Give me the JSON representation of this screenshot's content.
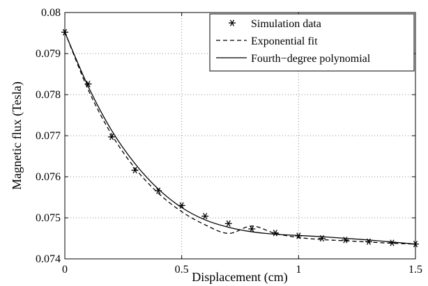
{
  "chart_data": {
    "type": "line",
    "title": "",
    "xlabel": "Displacement (cm)",
    "ylabel": "Magnetic flux (Tesla)",
    "xlim": [
      0,
      1.5
    ],
    "ylim": [
      0.074,
      0.08
    ],
    "x_ticks": [
      0,
      0.5,
      1,
      1.5
    ],
    "x_tick_labels": [
      "0",
      "0.5",
      "1",
      "1.5"
    ],
    "y_ticks": [
      0.074,
      0.075,
      0.076,
      0.077,
      0.078,
      0.079,
      0.08
    ],
    "y_tick_labels": [
      "0.074",
      "0.075",
      "0.076",
      "0.077",
      "0.078",
      "0.079",
      "0.08"
    ],
    "grid": true,
    "legend_position": "top-right",
    "series": [
      {
        "name": "Simulation data",
        "style": "markers",
        "marker": "*",
        "x": [
          0,
          0.1,
          0.2,
          0.3,
          0.4,
          0.5,
          0.6,
          0.7,
          0.8,
          0.9,
          1.0,
          1.1,
          1.2,
          1.3,
          1.4,
          1.5
        ],
        "y": [
          0.07952,
          0.07826,
          0.07697,
          0.07616,
          0.07566,
          0.0753,
          0.07504,
          0.07486,
          0.07473,
          0.07463,
          0.07456,
          0.0745,
          0.07446,
          0.07442,
          0.07439,
          0.07436
        ]
      },
      {
        "name": "Exponential fit",
        "style": "dashed",
        "x": [
          0,
          0.1,
          0.2,
          0.3,
          0.4,
          0.5,
          0.6,
          0.7,
          0.8,
          0.9,
          1.0,
          1.1,
          1.2,
          1.3,
          1.4,
          1.5
        ],
        "y": [
          0.07953,
          0.07812,
          0.07703,
          0.07621,
          0.0756,
          0.07515,
          0.07483,
          0.07462,
          0.0748,
          0.07462,
          0.07452,
          0.07447,
          0.07444,
          0.07441,
          0.07438,
          0.07436
        ]
      },
      {
        "name": "Fourth−degree polynomial",
        "style": "solid",
        "x": [
          0,
          0.1,
          0.2,
          0.3,
          0.4,
          0.5,
          0.6,
          0.7,
          0.8,
          0.9,
          1.0,
          1.1,
          1.2,
          1.3,
          1.4,
          1.5
        ],
        "y": [
          0.07952,
          0.0782,
          0.07713,
          0.07632,
          0.0757,
          0.07525,
          0.07495,
          0.07477,
          0.07466,
          0.0746,
          0.07457,
          0.07454,
          0.0745,
          0.07446,
          0.07441,
          0.07436
        ]
      }
    ]
  }
}
